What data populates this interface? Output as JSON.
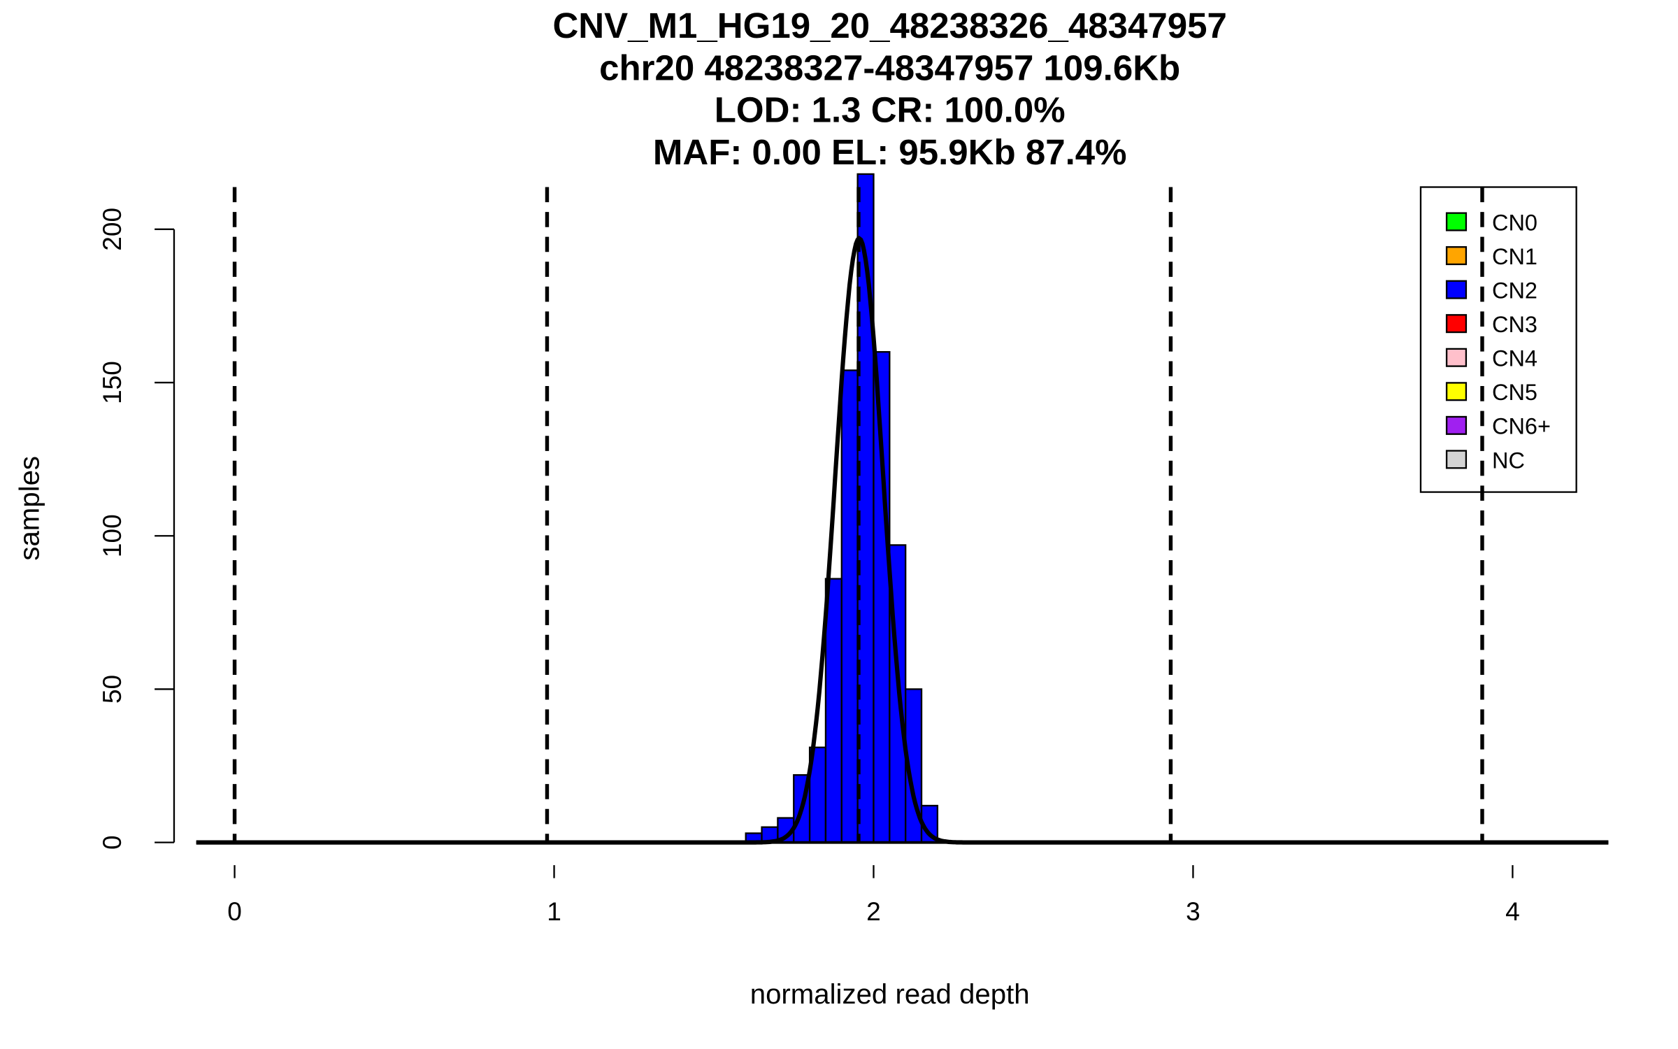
{
  "chart_data": {
    "type": "bar",
    "title_lines": [
      "CNV_M1_HG19_20_48238326_48347957",
      "chr20 48238327-48347957 109.6Kb",
      "LOD: 1.3 CR: 100.0%",
      "MAF: 0.00 EL: 95.9Kb 87.4%"
    ],
    "xlabel": "normalized read depth",
    "ylabel": "samples",
    "xlim": [
      -0.12,
      4.3
    ],
    "ylim": [
      0,
      218
    ],
    "xticks": [
      "0",
      "1",
      "2",
      "3",
      "4"
    ],
    "yticks": [
      "0",
      "50",
      "100",
      "150",
      "200"
    ],
    "bin_width": 0.05,
    "bins": [
      {
        "start": 1.6,
        "count": 3
      },
      {
        "start": 1.65,
        "count": 5
      },
      {
        "start": 1.7,
        "count": 8
      },
      {
        "start": 1.75,
        "count": 22
      },
      {
        "start": 1.8,
        "count": 31
      },
      {
        "start": 1.85,
        "count": 86
      },
      {
        "start": 1.9,
        "count": 154
      },
      {
        "start": 1.95,
        "count": 218
      },
      {
        "start": 2.0,
        "count": 160
      },
      {
        "start": 2.05,
        "count": 97
      },
      {
        "start": 2.1,
        "count": 50
      },
      {
        "start": 2.15,
        "count": 12
      }
    ],
    "bar_color": "#0000ff",
    "density_curve": {
      "mean": 1.955,
      "sd": 0.075,
      "peak": 197
    },
    "cn_thresholds": [
      0,
      0.978,
      1.953,
      2.93,
      3.905
    ],
    "legend": {
      "placement": "top-right",
      "entries": [
        {
          "label": "CN0",
          "color": "#00ff00"
        },
        {
          "label": "CN1",
          "color": "#ffa500"
        },
        {
          "label": "CN2",
          "color": "#0000ff"
        },
        {
          "label": "CN3",
          "color": "#ff0000"
        },
        {
          "label": "CN4",
          "color": "#ffc0cb"
        },
        {
          "label": "CN5",
          "color": "#ffff00"
        },
        {
          "label": "CN6+",
          "color": "#a020f0"
        },
        {
          "label": "NC",
          "color": "#d3d3d3"
        }
      ]
    }
  }
}
